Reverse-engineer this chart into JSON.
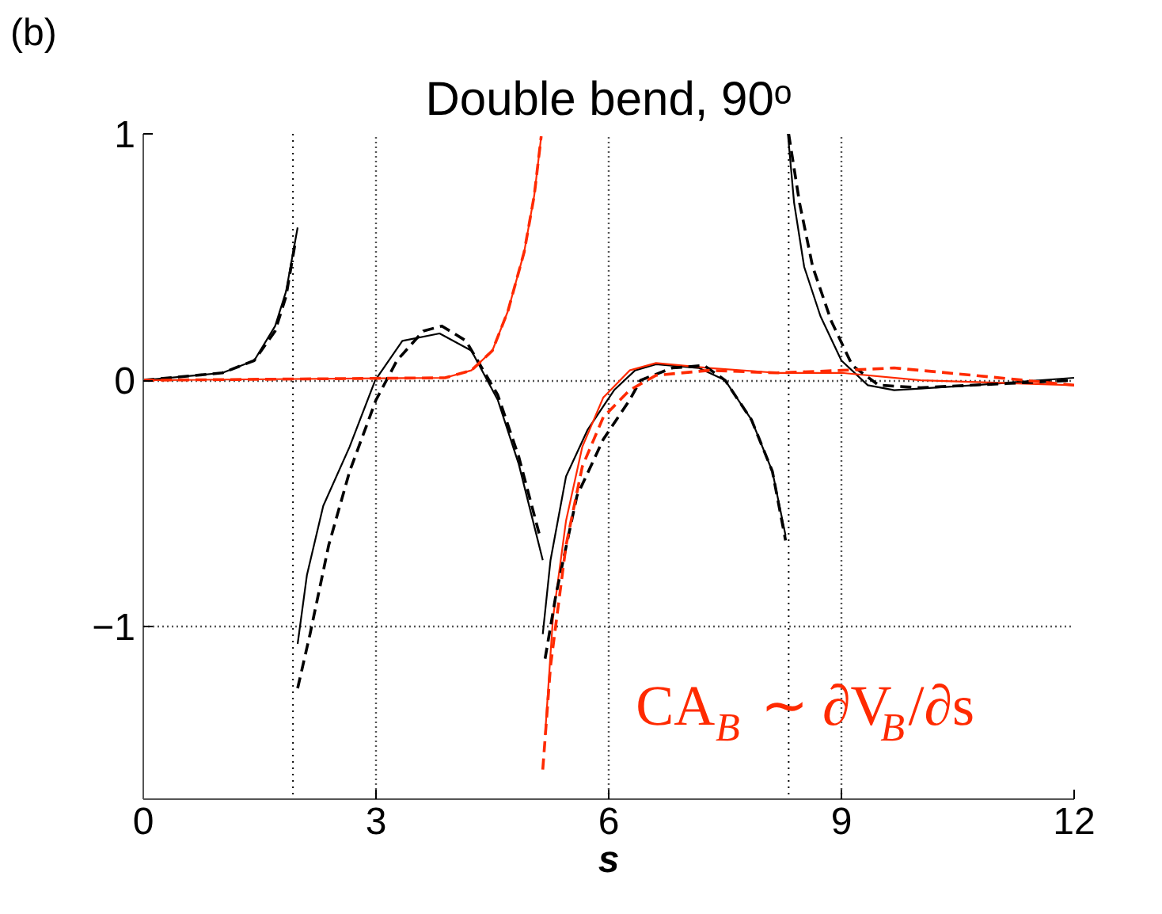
{
  "chart_data": {
    "type": "line",
    "title": "Double bend, 90ᵒ",
    "xlabel": "s",
    "annotations": [
      "(b)",
      "CA$_{B}$ ∼ ∂V$_{B}$/∂s"
    ],
    "xlim": [
      0,
      12
    ],
    "ylim": [
      -1.7,
      1
    ],
    "xticks": [
      0,
      3,
      6,
      9,
      12
    ],
    "yticks": [
      -1,
      0,
      1
    ],
    "grid": true,
    "ref_lines": [
      {
        "axis": "x",
        "value": 1.93,
        "color": "#000000",
        "line_style": "dotted"
      },
      {
        "axis": "x",
        "value": 8.32,
        "color": "#000000",
        "line_style": "dotted"
      }
    ],
    "series": [
      {
        "color": "#000000",
        "line_style": "solid",
        "x": [
          0,
          1.02,
          1.43,
          1.7,
          1.84,
          1.99
        ],
        "values": [
          0,
          0.03,
          0.08,
          0.22,
          0.36,
          0.62
        ]
      },
      {
        "color": "#000000",
        "line_style": "solid",
        "x": [
          1.99,
          2.11,
          2.32,
          2.66,
          2.99,
          3.34,
          3.82,
          4.23,
          4.57,
          4.84,
          5.15
        ],
        "values": [
          -1.07,
          -0.79,
          -0.51,
          -0.27,
          0,
          0.16,
          0.19,
          0.12,
          -0.08,
          -0.34,
          -0.73
        ]
      },
      {
        "color": "#000000",
        "line_style": "solid",
        "x": [
          5.15,
          5.25,
          5.45,
          5.73,
          6.07,
          6.34,
          6.61,
          7.16,
          7.5,
          7.84,
          8.11,
          8.28
        ],
        "values": [
          -1.03,
          -0.73,
          -0.39,
          -0.2,
          -0.04,
          0.04,
          0.065,
          0.05,
          0,
          -0.16,
          -0.37,
          -0.63
        ]
      },
      {
        "color": "#000000",
        "line_style": "solid",
        "x": [
          8.31,
          8.39,
          8.52,
          8.73,
          9.0,
          9.34,
          9.68,
          10.71,
          12
        ],
        "values": [
          1.0,
          0.72,
          0.46,
          0.26,
          0.08,
          -0.02,
          -0.04,
          -0.02,
          0.01
        ]
      },
      {
        "color": "#000000",
        "line_style": "dashed",
        "x": [
          0,
          1.02,
          1.43,
          1.7,
          1.84,
          1.96
        ],
        "values": [
          0,
          0.03,
          0.08,
          0.2,
          0.34,
          0.56
        ]
      },
      {
        "color": "#000000",
        "line_style": "dashed",
        "x": [
          1.99,
          2.15,
          2.39,
          2.66,
          3.0,
          3.27,
          3.61,
          3.85,
          4.16,
          4.57,
          4.84,
          5.11
        ],
        "values": [
          -1.25,
          -1.03,
          -0.67,
          -0.37,
          -0.08,
          0.08,
          0.2,
          0.22,
          0.16,
          -0.06,
          -0.31,
          -0.63
        ]
      },
      {
        "color": "#000000",
        "line_style": "dashed",
        "x": [
          5.18,
          5.32,
          5.59,
          5.93,
          6.27,
          6.41,
          6.82,
          7.23,
          7.5,
          7.84,
          8.11,
          8.28
        ],
        "values": [
          -1.13,
          -0.87,
          -0.47,
          -0.24,
          -0.08,
          0.0,
          0.05,
          0.06,
          0.0,
          -0.16,
          -0.37,
          -0.65
        ]
      },
      {
        "color": "#000000",
        "line_style": "dashed",
        "x": [
          8.32,
          8.46,
          8.63,
          8.87,
          9.14,
          9.48,
          10.02,
          12
        ],
        "values": [
          1.0,
          0.72,
          0.46,
          0.24,
          0.06,
          -0.02,
          -0.03,
          0.0
        ]
      },
      {
        "color": "#ff2a00",
        "line_style": "solid",
        "x": [
          0,
          3.89,
          4.23,
          4.5,
          4.7,
          4.91,
          5.04,
          5.13
        ],
        "values": [
          0,
          0.01,
          0.04,
          0.12,
          0.28,
          0.52,
          0.75,
          0.99
        ]
      },
      {
        "color": "#ff2a00",
        "line_style": "solid",
        "x": [
          5.18,
          5.28,
          5.45,
          5.66,
          5.93,
          6.27,
          6.61,
          7.29,
          8.17,
          9.0,
          10.02,
          12
        ],
        "values": [
          -1.44,
          -0.97,
          -0.57,
          -0.27,
          -0.07,
          0.04,
          0.07,
          0.05,
          0.03,
          0.03,
          0.0,
          -0.02
        ]
      },
      {
        "color": "#ff2a00",
        "line_style": "dashed",
        "x": [
          0,
          3.89,
          4.23,
          4.5,
          4.7,
          4.91,
          5.04,
          5.13
        ],
        "values": [
          0,
          0.01,
          0.04,
          0.12,
          0.28,
          0.52,
          0.75,
          0.99
        ]
      },
      {
        "color": "#ff2a00",
        "line_style": "dashed",
        "x": [
          5.15,
          5.25,
          5.45,
          5.66,
          5.93,
          6.27,
          6.61,
          7.29,
          8.17,
          9.0,
          9.68,
          10.71,
          12
        ],
        "values": [
          -1.58,
          -1.16,
          -0.67,
          -0.35,
          -0.15,
          -0.04,
          0.02,
          0.04,
          0.03,
          0.04,
          0.05,
          0.02,
          -0.02
        ]
      }
    ]
  }
}
